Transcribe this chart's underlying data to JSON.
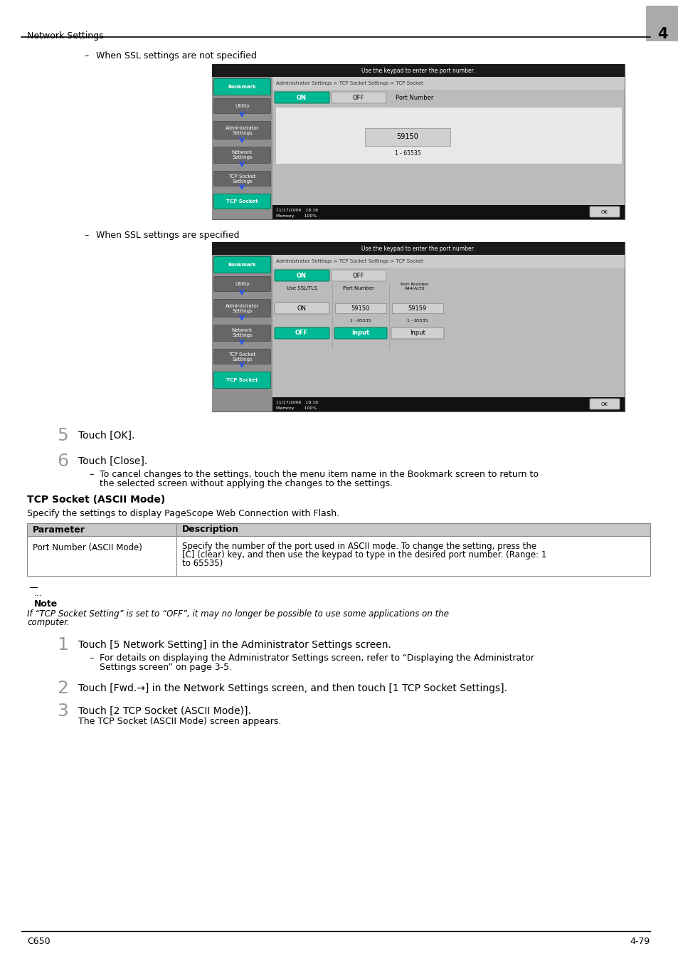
{
  "page_width": 9.54,
  "page_height": 13.5,
  "bg_color": "#ffffff",
  "header_text": "Network Settings",
  "header_chapter": "4",
  "footer_left": "C650",
  "footer_right": "4-79",
  "body": {
    "bullet1": "When SSL settings are not specified",
    "bullet2": "When SSL settings are specified",
    "step5": "Touch [OK].",
    "step6": "Touch [Close].",
    "sub6_line1": "To cancel changes to the settings, touch the menu item name in the Bookmark screen to return to",
    "sub6_line2": "the selected screen without applying the changes to the settings.",
    "section_title": "TCP Socket (ASCII Mode)",
    "section_intro": "Specify the settings to display PageScope Web Connection with Flash.",
    "table_header1": "Parameter",
    "table_header2": "Description",
    "table_row1_col1": "Port Number (ASCII Mode)",
    "table_row1_col2_1": "Specify the number of the port used in ASCII mode. To change the setting, press the",
    "table_row1_col2_2": "[C] (clear) key, and then use the keypad to type in the desired port number. (Range: 1",
    "table_row1_col2_3": "to 65535)",
    "note_dots": "...",
    "note_label": "Note",
    "note_text_1": "If “TCP Socket Setting” is set to “OFF”, it may no longer be possible to use some applications on the",
    "note_text_2": "computer.",
    "step1": "Touch [5 Network Setting] in the Administrator Settings screen.",
    "sub1_line1": "For details on displaying the Administrator Settings screen, refer to “Displaying the Administrator",
    "sub1_line2": "Settings screen” on page 3-5.",
    "step2": "Touch [Fwd.→] in the Network Settings screen, and then touch [1 TCP Socket Settings].",
    "step3": "Touch [2 TCP Socket (ASCII Mode)].",
    "sub3": "The TCP Socket (ASCII Mode) screen appears.",
    "screenshot1_title": "Use the keypad to enter the port number.",
    "screenshot1_breadcrumb": "Administrator Settings > TCP Socket Settings > TCP Socket",
    "screenshot1_on": "ON",
    "screenshot1_off": "OFF",
    "screenshot1_port_label": "Port Number",
    "screenshot1_port_val": "59150",
    "screenshot1_port_range": "1 - 65535",
    "screenshot1_status": "11/17/2006   18:16",
    "screenshot1_memory": "Memory       100%",
    "screenshot1_ok": "OK",
    "screenshot1_bookmark": "Bookmark",
    "screenshot1_utility": "Utility",
    "screenshot1_admin": "Administrator\nSettings",
    "screenshot1_network": "Network\nSettings",
    "screenshot1_tcp_settings": "TCP Socket\nSettings",
    "screenshot1_tcp": "TCP Socket",
    "screenshot2_title": "Use the keypad to enter the port number.",
    "screenshot2_breadcrumb": "Administrator Settings > TCP Socket Settings > TCP Socket",
    "screenshot2_ssl": "Use SSL/TLS",
    "screenshot2_port1_label": "Port Number",
    "screenshot2_port2_label": "Port Number\n644/ALT0",
    "screenshot2_on": "ON",
    "screenshot2_off": "OFF",
    "screenshot2_port1_val": "59150",
    "screenshot2_port2_val": "59159",
    "screenshot2_range": "1 - 65535",
    "screenshot2_input": "Input",
    "screenshot2_status": "11/17/2006   18:16",
    "screenshot2_memory": "Memory       100%",
    "screenshot2_ok": "OK",
    "teal_color": "#00b894",
    "dark_gray": "#888888",
    "mid_gray": "#d0d0d0",
    "light_gray": "#e0e0e0",
    "sidebar_color": "#909090",
    "dark_bar": "#1a1a1a",
    "blue_arrow": "#2255ee"
  }
}
